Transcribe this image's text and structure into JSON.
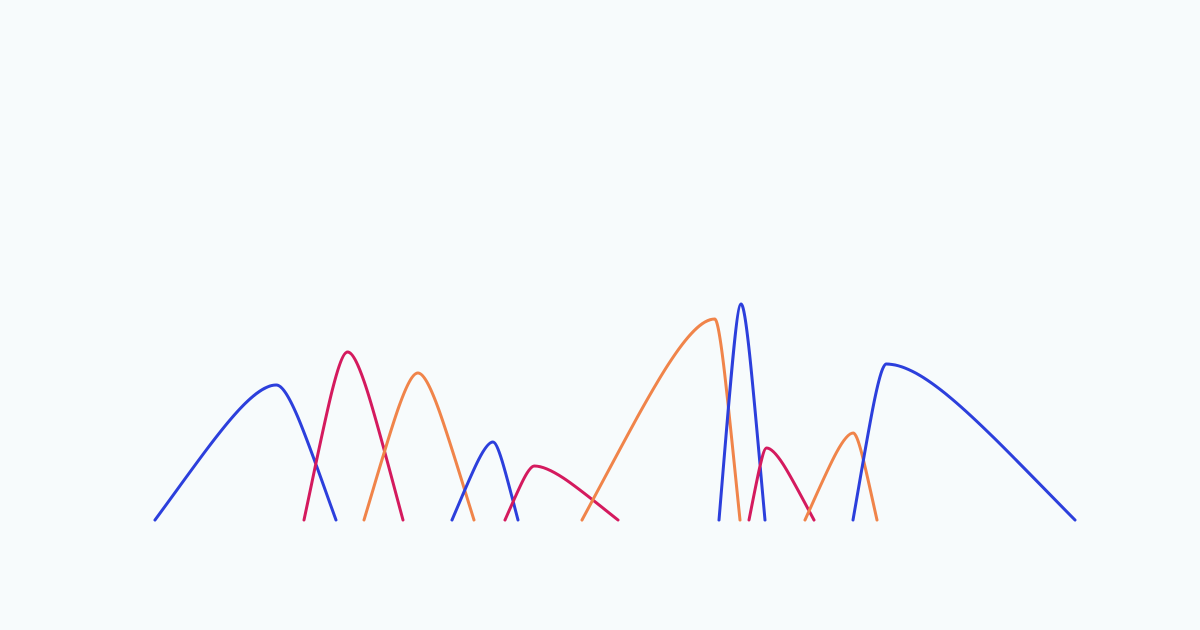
{
  "colors": {
    "background": "#f7fbfc",
    "blue": "#2c3fdc",
    "crimson": "#d41a5e",
    "orange": "#f0844a"
  },
  "arcs": [
    {
      "name": "blue-arc-1",
      "color": "blue",
      "height": 0.45,
      "skew": 0.67
    },
    {
      "name": "crimson-arc-1",
      "color": "crimson",
      "height": 0.56,
      "skew": 0.44
    },
    {
      "name": "orange-arc-1",
      "color": "orange",
      "height": 0.49,
      "skew": 0.49
    },
    {
      "name": "blue-arc-2",
      "color": "blue",
      "height": 0.26,
      "skew": 0.62
    },
    {
      "name": "crimson-arc-2",
      "color": "crimson",
      "height": 0.18,
      "skew": 0.26
    },
    {
      "name": "orange-arc-2",
      "color": "orange",
      "height": 0.67,
      "skew": 0.84
    },
    {
      "name": "blue-arc-3",
      "color": "blue",
      "height": 0.72,
      "skew": 0.48
    },
    {
      "name": "crimson-arc-3",
      "color": "crimson",
      "height": 0.24,
      "skew": 0.27
    },
    {
      "name": "orange-arc-3",
      "color": "orange",
      "height": 0.29,
      "skew": 0.67
    },
    {
      "name": "blue-arc-4",
      "color": "blue",
      "height": 0.52,
      "skew": 0.15
    }
  ]
}
